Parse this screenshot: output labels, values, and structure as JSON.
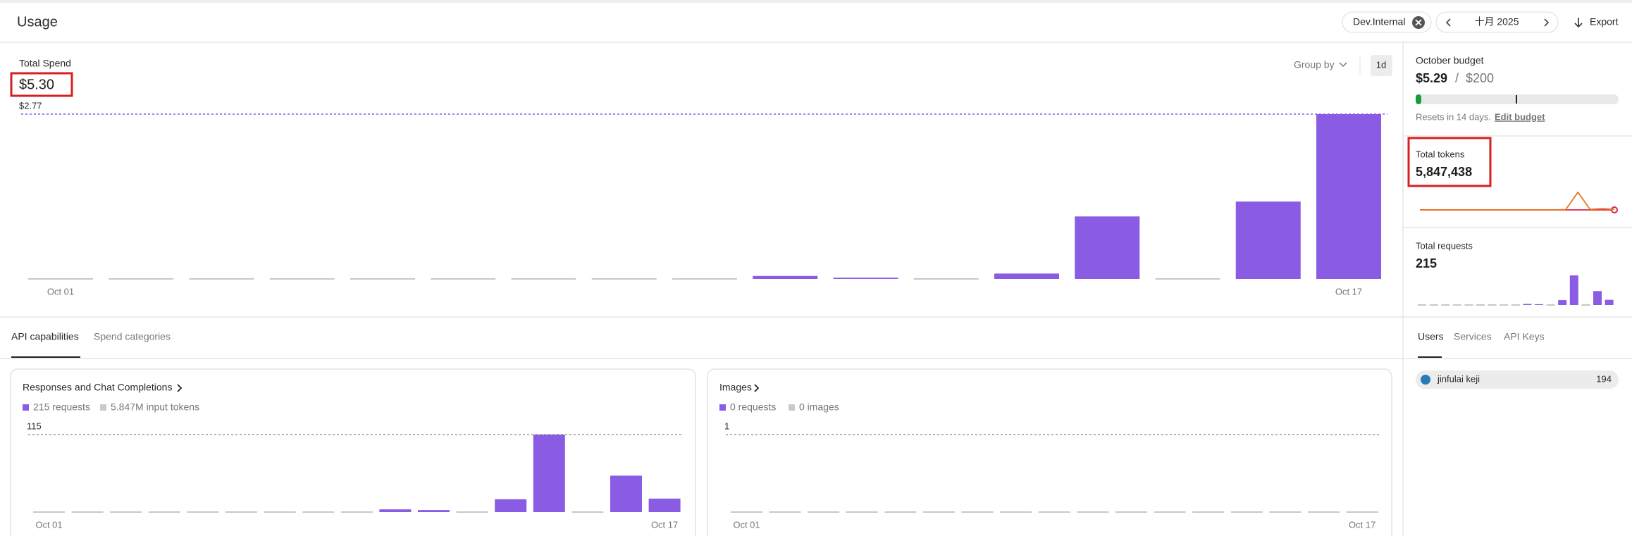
{
  "header": {
    "title": "Usage",
    "project": "Dev.Internal",
    "month": "十月 2025",
    "export": "Export"
  },
  "spend": {
    "label": "Total Spend",
    "total": "$5.30",
    "group_by": "Group by",
    "interval": "1d",
    "chart_data": {
      "type": "bar",
      "color": "#8a5ce3",
      "categories": [
        "Oct 01",
        null,
        null,
        null,
        null,
        null,
        null,
        null,
        null,
        null,
        null,
        null,
        null,
        null,
        null,
        null,
        "Oct 17"
      ],
      "values": [
        0,
        0,
        0,
        0,
        0,
        0,
        0,
        0,
        0,
        0.05,
        0.02,
        0,
        0.09,
        1.05,
        0,
        1.3,
        2.77
      ],
      "ref_line": {
        "value": 2.77,
        "label": "$2.77"
      }
    }
  },
  "tabs": [
    "API capabilities",
    "Spend categories"
  ],
  "cards": [
    {
      "title": "Responses and Chat Completions",
      "legend": [
        "215 requests",
        "5.847M input tokens"
      ],
      "chart_data": {
        "type": "bar",
        "color": "#8a5ce3",
        "categories": [
          "Oct 01",
          null,
          null,
          null,
          null,
          null,
          null,
          null,
          null,
          null,
          null,
          null,
          null,
          null,
          null,
          null,
          "Oct 17"
        ],
        "values": [
          0,
          0,
          0,
          0,
          0,
          0,
          0,
          0,
          0,
          4,
          3,
          0,
          19,
          115,
          0,
          54,
          20
        ],
        "ref_line": 115
      }
    },
    {
      "title": "Images",
      "legend": [
        "0 requests",
        "0 images"
      ],
      "chart_data": {
        "type": "bar",
        "color": "#8a5ce3",
        "categories": [
          "Oct 01",
          null,
          null,
          null,
          null,
          null,
          null,
          null,
          null,
          null,
          null,
          null,
          null,
          null,
          null,
          null,
          "Oct 17"
        ],
        "values": [
          0,
          0,
          0,
          0,
          0,
          0,
          0,
          0,
          0,
          0,
          0,
          0,
          0,
          0,
          0,
          0,
          0
        ],
        "ref_line": 1
      }
    }
  ],
  "sidebar": {
    "budget": {
      "label": "October budget",
      "spent": {
        "value": 5.29,
        "label": "$5.29"
      },
      "limit": {
        "value": 200,
        "label": "$200"
      },
      "resets": "Resets in 14 days.",
      "edit": "Edit budget"
    },
    "tokens": {
      "label": "Total tokens",
      "total": "5,847,438",
      "sparkline": [
        0,
        0,
        0,
        0,
        0,
        0,
        0,
        0,
        0,
        0,
        0,
        0,
        0.1,
        5.1,
        0.15,
        0.35,
        0.15
      ]
    },
    "requests": {
      "label": "Total requests",
      "total": "215"
    },
    "tabs": [
      "Users",
      "Services",
      "API Keys"
    ],
    "users": [
      {
        "name": "jinfulai keji",
        "count": 194
      }
    ]
  }
}
